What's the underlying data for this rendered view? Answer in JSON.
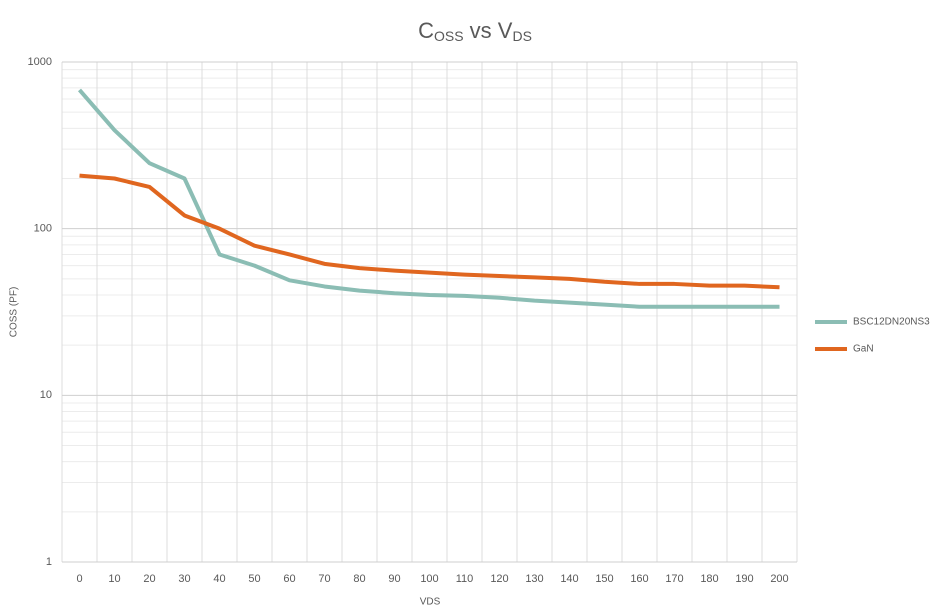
{
  "chart_data": {
    "type": "line",
    "title": [
      "C",
      "OSS",
      " vs V",
      "DS"
    ],
    "x_label": "VDS",
    "y_label": "COSS (PF)",
    "categories": [
      "0",
      "10",
      "20",
      "30",
      "40",
      "50",
      "60",
      "70",
      "80",
      "90",
      "100",
      "110",
      "120",
      "130",
      "140",
      "150",
      "160",
      "170",
      "180",
      "190",
      "200"
    ],
    "series": [
      {
        "name": "BSC12DN20NS3",
        "color": "#8bbdb4",
        "values": [
          680,
          390,
          247,
          200,
          70,
          60,
          49,
          45,
          42.5,
          41,
          40,
          39.5,
          38.5,
          37,
          36,
          35,
          34,
          34,
          34,
          34,
          34
        ]
      },
      {
        "name": "GaN",
        "color": "#e0661f",
        "values": [
          208,
          200,
          178,
          120,
          100,
          79,
          70,
          61.5,
          58,
          56,
          54.5,
          53,
          52,
          51,
          50,
          48,
          46.6,
          46.6,
          45.5,
          45.5,
          44.5
        ]
      }
    ],
    "log_y": true,
    "ylim": [
      1,
      1000
    ],
    "yticks": [
      1,
      10,
      100,
      1000
    ],
    "grid": true,
    "minor_grid": true,
    "legend": "right"
  }
}
